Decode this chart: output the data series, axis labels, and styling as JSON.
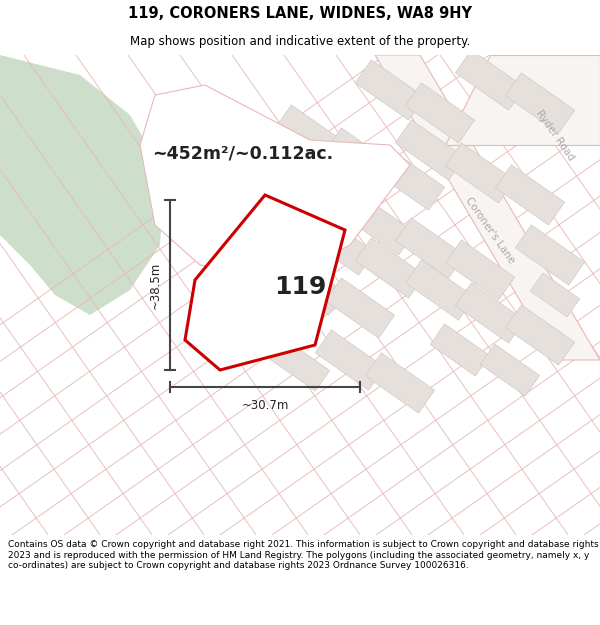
{
  "title": "119, CORONERS LANE, WIDNES, WA8 9HY",
  "subtitle": "Map shows position and indicative extent of the property.",
  "area_text": "~452m²/~0.112ac.",
  "label_119": "119",
  "dim_height": "~38.5m",
  "dim_width": "~30.7m",
  "road_label_ryder": "Ryder Road",
  "road_label_coroner": "Coroner's Lane",
  "footer": "Contains OS data © Crown copyright and database right 2021. This information is subject to Crown copyright and database rights 2023 and is reproduced with the permission of HM Land Registry. The polygons (including the associated geometry, namely x, y co-ordinates) are subject to Crown copyright and database rights 2023 Ordnance Survey 100026316.",
  "bg_map_color": "#f2ede8",
  "white_bg": "#ffffff",
  "green_color": "#cddecb",
  "road_fill": "#f7f4f1",
  "block_fill": "#e5e0db",
  "block_edge": "#d0cbc6",
  "parcel_line_color": "#e8b8b8",
  "road_label_color": "#aaaaaa",
  "plot_edge_color": "#cc0000",
  "dim_line_color": "#444444",
  "text_dark": "#222222"
}
